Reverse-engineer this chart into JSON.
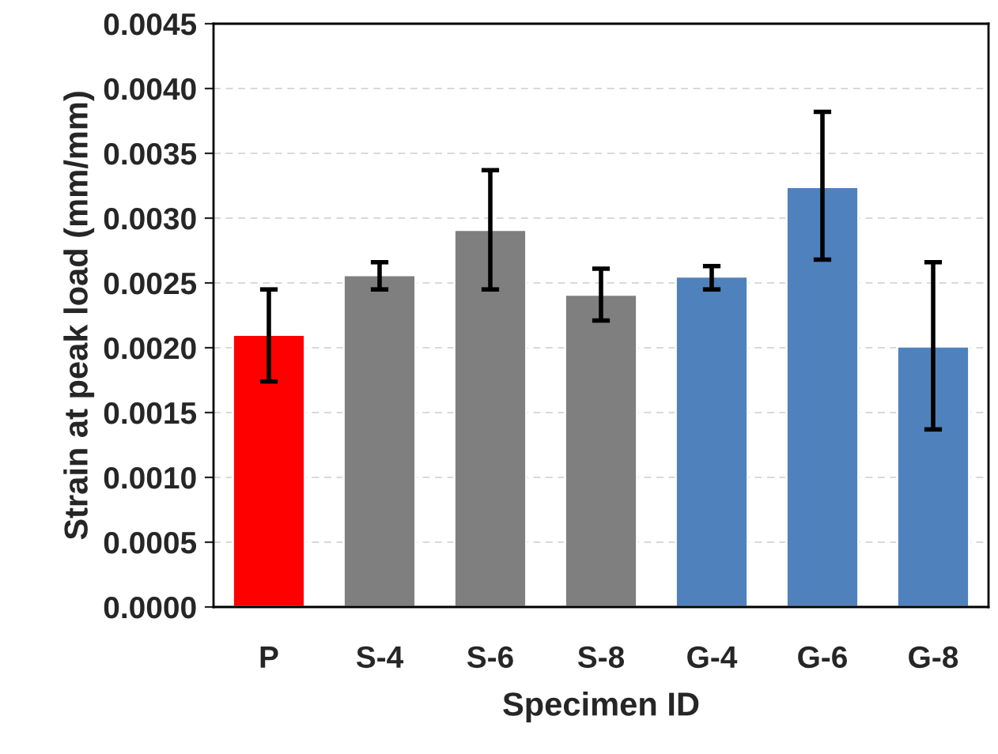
{
  "chart_data": {
    "type": "bar",
    "xlabel": "Specimen ID",
    "ylabel": "Strain at peak load (mm/mm)",
    "categories": [
      "P",
      "S-4",
      "S-6",
      "S-8",
      "G-4",
      "G-6",
      "G-8"
    ],
    "values": [
      0.0021,
      0.00256,
      0.00291,
      0.00241,
      0.00255,
      0.00324,
      0.00201
    ],
    "colors": [
      "#ff0000",
      "#7f7f7f",
      "#7f7f7f",
      "#7f7f7f",
      "#4f81bd",
      "#4f81bd",
      "#4f81bd"
    ],
    "errors": [
      [
        0.00174,
        0.00245
      ],
      [
        0.00245,
        0.00266
      ],
      [
        0.00245,
        0.00337
      ],
      [
        0.00221,
        0.00261
      ],
      [
        0.00245,
        0.00263
      ],
      [
        0.00268,
        0.00382
      ],
      [
        0.00137,
        0.00266
      ]
    ],
    "ylim": [
      0,
      0.0045
    ],
    "yticks": [
      {
        "value": 0,
        "label": "0.0000"
      },
      {
        "value": 0.0005,
        "label": "0.0005"
      },
      {
        "value": 0.001,
        "label": "0.0010"
      },
      {
        "value": 0.0015,
        "label": "0.0015"
      },
      {
        "value": 0.002,
        "label": "0.0020"
      },
      {
        "value": 0.0025,
        "label": "0.0025"
      },
      {
        "value": 0.003,
        "label": "0.0030"
      },
      {
        "value": 0.0035,
        "label": "0.0035"
      },
      {
        "value": 0.004,
        "label": "0.0040"
      },
      {
        "value": 0.0045,
        "label": "0.0045"
      }
    ],
    "grid": "y"
  }
}
